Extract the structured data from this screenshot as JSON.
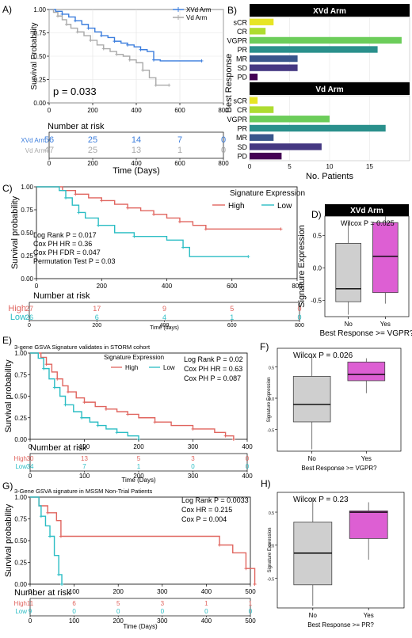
{
  "colors": {
    "xvd": "#3b7ddd",
    "vd": "#a9a9a9",
    "high": "#e0655f",
    "low": "#2bbdc4",
    "box_no": "#cfcfcf",
    "box_yes": "#dd5fd3",
    "header_bg": "#000000",
    "sCR": "#e7e524",
    "CR": "#aedc30",
    "VGPR": "#6ccd5a",
    "PR": "#2a908c",
    "MR": "#39568c",
    "SD": "#453882",
    "PD": "#440154"
  },
  "panels": {
    "A": {
      "letter": "A)",
      "chart_data": {
        "type": "line",
        "ylabel": "Survival Probability",
        "xlabel": "Time (Days)",
        "xlim": [
          0,
          800
        ],
        "ylim": [
          0,
          1
        ],
        "x_ticks": [
          "0",
          "200",
          "400",
          "600",
          "800"
        ],
        "y_ticks": [
          "0.00",
          "0.25",
          "0.50",
          "0.75",
          "1.00"
        ],
        "legend": [
          "XVd Arm",
          "Vd Arm"
        ],
        "annotation": "p = 0.033",
        "series": [
          {
            "name": "XVd Arm",
            "color_key": "xvd",
            "x": [
              0,
              30,
              60,
              90,
              120,
              150,
              180,
              210,
              240,
              270,
              300,
              330,
              360,
              390,
              420,
              450,
              480,
              510,
              700
            ],
            "y": [
              1.0,
              0.98,
              0.95,
              0.92,
              0.88,
              0.84,
              0.8,
              0.76,
              0.72,
              0.7,
              0.66,
              0.64,
              0.62,
              0.6,
              0.57,
              0.55,
              0.46,
              0.45,
              0.45
            ]
          },
          {
            "name": "Vd Arm",
            "color_key": "vd",
            "x": [
              0,
              20,
              40,
              60,
              80,
              100,
              130,
              160,
              190,
              220,
              250,
              280,
              310,
              340,
              370,
              400,
              430,
              460,
              490,
              520,
              550
            ],
            "y": [
              1.0,
              0.97,
              0.93,
              0.89,
              0.84,
              0.8,
              0.76,
              0.72,
              0.67,
              0.62,
              0.58,
              0.55,
              0.52,
              0.5,
              0.46,
              0.43,
              0.35,
              0.27,
              0.19,
              0.19,
              0.19
            ]
          }
        ]
      },
      "risk": {
        "title": "Number at risk",
        "x_ticks": [
          "0",
          "200",
          "400",
          "600",
          "800"
        ],
        "rows": [
          {
            "label": "XVd Arm",
            "color_key": "xvd",
            "values": [
              "56",
              "25",
              "14",
              "7",
              "0"
            ]
          },
          {
            "label": "Vd Arm",
            "color_key": "vd",
            "values": [
              "47",
              "25",
              "13",
              "1",
              "0"
            ]
          }
        ]
      }
    },
    "B": {
      "letter": "B)",
      "ylabel": "Best Response",
      "xlabel": "No. Patients",
      "x_ticks": [
        "0",
        "5",
        "10",
        "15"
      ],
      "chart_data": [
        {
          "type": "bar",
          "title": "XVd Arm",
          "categories": [
            "sCR",
            "CR",
            "VGPR",
            "PR",
            "MR",
            "SD",
            "PD"
          ],
          "values": [
            3,
            2,
            19,
            16,
            6,
            6,
            1
          ]
        },
        {
          "type": "bar",
          "title": "Vd Arm",
          "categories": [
            "sCR",
            "CR",
            "VGPR",
            "PR",
            "MR",
            "SD",
            "PD"
          ],
          "values": [
            1,
            3,
            10,
            17,
            3,
            9,
            4
          ]
        }
      ]
    },
    "C": {
      "letter": "C)",
      "chart_data": {
        "type": "line",
        "ylabel": "Survival probability",
        "xlabel": "Time (days)",
        "xlim": [
          0,
          800
        ],
        "ylim": [
          0,
          1
        ],
        "x_ticks": [
          "0",
          "200",
          "400",
          "600",
          "800"
        ],
        "y_ticks": [
          "0.00",
          "0.25",
          "0.50",
          "0.75",
          "1.00"
        ],
        "legend_title": "Signature Expression",
        "legend": [
          "High",
          "Low"
        ],
        "annotations": [
          "Log Rank P = 0.017",
          "Cox PH HR = 0.36",
          "Cox PH FDR = 0.047",
          "Permutation Test P = 0.03"
        ],
        "series": [
          {
            "name": "High",
            "color_key": "high",
            "x": [
              0,
              80,
              120,
              160,
              200,
              240,
              280,
              320,
              360,
              400,
              440,
              480,
              520,
              750
            ],
            "y": [
              1.0,
              0.96,
              0.92,
              0.88,
              0.85,
              0.81,
              0.77,
              0.74,
              0.7,
              0.66,
              0.62,
              0.58,
              0.54,
              0.54
            ]
          },
          {
            "name": "Low",
            "color_key": "low",
            "x": [
              0,
              70,
              90,
              110,
              130,
              150,
              190,
              240,
              300,
              400,
              450,
              470,
              650
            ],
            "y": [
              1.0,
              0.96,
              0.88,
              0.8,
              0.72,
              0.66,
              0.58,
              0.5,
              0.46,
              0.42,
              0.34,
              0.24,
              0.24
            ]
          }
        ]
      },
      "risk": {
        "title": "Number at risk",
        "x_ticks": [
          "0",
          "200",
          "400",
          "600",
          "800"
        ],
        "axis_label": "Time (days)",
        "rows": [
          {
            "label": "High",
            "color_key": "high",
            "values": [
              "27",
              "17",
              "9",
              "5",
              "0"
            ]
          },
          {
            "label": "Low",
            "color_key": "low",
            "values": [
              "26",
              "6",
              "4",
              "1",
              "0"
            ]
          }
        ]
      }
    },
    "D": {
      "letter": "D)",
      "chart_data": {
        "type": "box",
        "title": "XVd Arm",
        "annotation": "Wilcox P = 0.025",
        "ylabel": "Signature Expression",
        "xlabel": "Best Response >= VGPR?",
        "categories": [
          "No",
          "Yes"
        ],
        "y_ticks": [
          "-0.5",
          "0.0",
          "0.5"
        ],
        "ylim": [
          -0.75,
          0.8
        ],
        "boxes": [
          {
            "name": "No",
            "min": -0.72,
            "q1": -0.52,
            "median": -0.32,
            "q3": 0.38,
            "max": 0.72
          },
          {
            "name": "Yes",
            "min": -0.55,
            "q1": -0.38,
            "median": 0.18,
            "q3": 0.7,
            "max": 0.8
          }
        ]
      }
    },
    "E": {
      "letter": "E)",
      "chart_data": {
        "type": "line",
        "title": "3-gene GSVA Signature validates in STORM cohort",
        "ylabel": "Survival probability",
        "xlabel": "Time (Days)",
        "xlim": [
          0,
          400
        ],
        "ylim": [
          0,
          1
        ],
        "x_ticks": [
          "0",
          "100",
          "200",
          "300",
          "400"
        ],
        "y_ticks": [
          "0.00",
          "0.25",
          "0.50",
          "0.75",
          "1.00"
        ],
        "legend_title": "Signature Expression",
        "legend": [
          "High",
          "Low"
        ],
        "annotations": [
          "Log Rank P = 0.02",
          "Cox PH HR = 0.63",
          "Cox PH P = 0.087"
        ],
        "series": [
          {
            "name": "High",
            "color_key": "high",
            "x": [
              0,
              20,
              30,
              40,
              50,
              60,
              70,
              85,
              100,
              120,
              140,
              160,
              180,
              200,
              230,
              260,
              300,
              340,
              360,
              375
            ],
            "y": [
              1.0,
              0.95,
              0.87,
              0.78,
              0.7,
              0.62,
              0.55,
              0.48,
              0.43,
              0.38,
              0.35,
              0.32,
              0.29,
              0.25,
              0.2,
              0.16,
              0.12,
              0.08,
              0.04,
              0.0
            ]
          },
          {
            "name": "Low",
            "color_key": "low",
            "x": [
              0,
              15,
              25,
              35,
              45,
              55,
              65,
              80,
              95,
              110,
              125,
              140,
              160,
              180,
              200
            ],
            "y": [
              1.0,
              0.94,
              0.82,
              0.7,
              0.6,
              0.5,
              0.4,
              0.32,
              0.25,
              0.2,
              0.16,
              0.12,
              0.08,
              0.04,
              0.0
            ]
          }
        ]
      },
      "risk": {
        "title": "Number at risk",
        "x_ticks": [
          "0",
          "100",
          "200",
          "300",
          "400"
        ],
        "axis_label": "Time (Days)",
        "rows": [
          {
            "label": "High",
            "color_key": "high",
            "values": [
              "30",
              "13",
              "5",
              "3",
              "0"
            ]
          },
          {
            "label": "Low",
            "color_key": "low",
            "values": [
              "34",
              "7",
              "1",
              "0",
              "0"
            ]
          }
        ]
      }
    },
    "F": {
      "letter": "F)",
      "chart_data": {
        "type": "box",
        "annotation": "Wilcox P = 0.026",
        "ylabel": "Signature Expression",
        "xlabel": "Best Response >= VGPR?",
        "categories": [
          "No",
          "Yes"
        ],
        "y_ticks": [
          "-0.5",
          "0.0",
          "0.5"
        ],
        "ylim": [
          -0.85,
          0.8
        ],
        "boxes": [
          {
            "name": "No",
            "min": -0.82,
            "q1": -0.38,
            "median": -0.1,
            "q3": 0.35,
            "max": 0.7
          },
          {
            "name": "Yes",
            "min": 0.08,
            "q1": 0.28,
            "median": 0.38,
            "q3": 0.58,
            "max": 0.64
          }
        ]
      }
    },
    "G": {
      "letter": "G)",
      "chart_data": {
        "type": "line",
        "title": "3-Gene GSVA signature in MSSM Non-Trial Patients",
        "ylabel": "Survival probability",
        "xlabel": "Time (Days)",
        "xlim": [
          0,
          500
        ],
        "ylim": [
          0,
          1
        ],
        "x_ticks": [
          "0",
          "100",
          "200",
          "300",
          "400",
          "500"
        ],
        "y_ticks": [
          "0.00",
          "0.25",
          "0.50",
          "0.75",
          "1.00"
        ],
        "annotations": [
          "Log Rank P = 0.0033",
          "Cox HR = 0.215",
          "Cox P = 0.004"
        ],
        "series": [
          {
            "name": "High",
            "color_key": "high",
            "x": [
              0,
              20,
              40,
              60,
              70,
              400,
              430,
              460,
              490,
              510
            ],
            "y": [
              1.0,
              0.9,
              0.82,
              0.73,
              0.55,
              0.55,
              0.45,
              0.36,
              0.18,
              0.0
            ]
          },
          {
            "name": "Low",
            "color_key": "low",
            "x": [
              0,
              20,
              25,
              35,
              45,
              55,
              65,
              72
            ],
            "y": [
              1.0,
              0.9,
              0.78,
              0.67,
              0.55,
              0.33,
              0.11,
              0.0
            ]
          }
        ]
      },
      "risk": {
        "title": "Number at risk",
        "x_ticks": [
          "0",
          "100",
          "200",
          "300",
          "400",
          "500"
        ],
        "axis_label": "Time (Days)",
        "rows": [
          {
            "label": "High",
            "color_key": "high",
            "values": [
              "11",
              "6",
              "5",
              "3",
              "1",
              "1"
            ]
          },
          {
            "label": "Low",
            "color_key": "low",
            "values": [
              "9",
              "0",
              "0",
              "0",
              "0",
              "0"
            ]
          }
        ]
      }
    },
    "H": {
      "letter": "H)",
      "chart_data": {
        "type": "box",
        "annotation": "Wilcox P = 0.23",
        "ylabel": "Signature Expression",
        "xlabel": "Best Response >= PR?",
        "categories": [
          "No",
          "Yes"
        ],
        "y_ticks": [
          "-0.5",
          "0.0",
          "0.5"
        ],
        "ylim": [
          -0.95,
          0.8
        ],
        "boxes": [
          {
            "name": "No",
            "min": -0.92,
            "q1": -0.6,
            "median": -0.12,
            "q3": 0.35,
            "max": 0.72
          },
          {
            "name": "Yes",
            "min": -0.22,
            "q1": 0.1,
            "median": 0.5,
            "q3": 0.52,
            "max": 0.65
          }
        ]
      }
    }
  }
}
